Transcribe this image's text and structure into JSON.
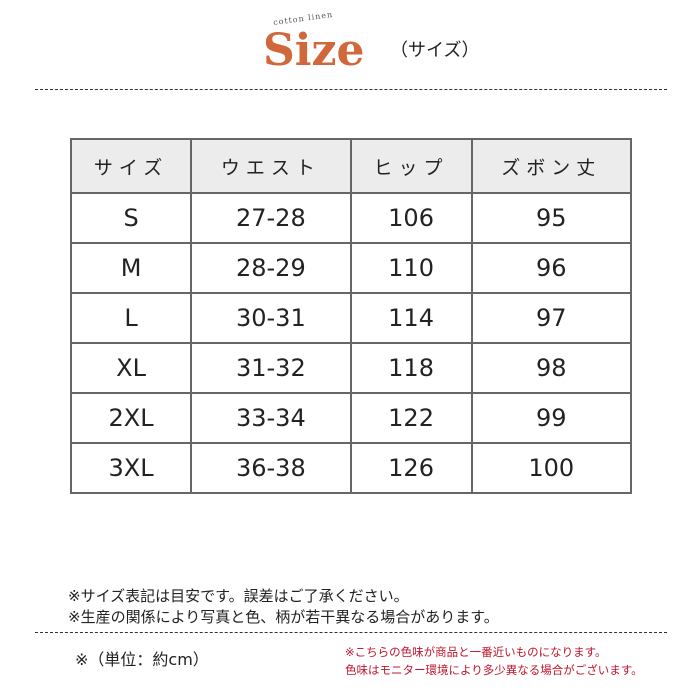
{
  "header": {
    "logo_small": "cotton linen",
    "logo_main": "Size",
    "subtitle": "（サイズ）",
    "accent_color": "#d0683c"
  },
  "table": {
    "columns": [
      "サイズ",
      "ウエスト",
      "ヒップ",
      "ズボン丈"
    ],
    "rows": [
      [
        "S",
        "27-28",
        "106",
        "95"
      ],
      [
        "M",
        "28-29",
        "110",
        "96"
      ],
      [
        "L",
        "30-31",
        "114",
        "97"
      ],
      [
        "XL",
        "31-32",
        "118",
        "98"
      ],
      [
        "2XL",
        "33-34",
        "122",
        "99"
      ],
      [
        "3XL",
        "36-38",
        "126",
        "100"
      ]
    ]
  },
  "notes": [
    "※サイズ表記は目安です。誤差はご了承ください。",
    "※生産の関係により写真と色、柄が若干異なる場合があります。"
  ],
  "unit": "※（単位：約cm）",
  "color_notes": [
    "※こちらの色味が商品と一番近いものになります。",
    "色味はモニター環境により多少異なる場合がございます。"
  ],
  "color_note_color": "#c0142b"
}
